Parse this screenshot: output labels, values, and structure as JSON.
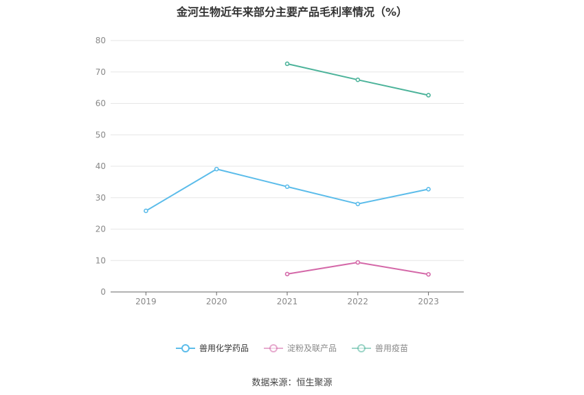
{
  "chart_data": {
    "type": "line",
    "title": "金河生物近年来部分主要产品毛利率情况（%）",
    "x": [
      "2019",
      "2020",
      "2021",
      "2022",
      "2023"
    ],
    "ylim": [
      0,
      80
    ],
    "yticks": [
      0,
      10,
      20,
      30,
      40,
      50,
      60,
      70,
      80
    ],
    "grid": true,
    "legend_position": "bottom",
    "series": [
      {
        "name": "兽用化学药品",
        "color": "#5bbcea",
        "values": [
          25.8,
          39.1,
          33.5,
          28.0,
          32.7
        ]
      },
      {
        "name": "淀粉及联产品",
        "color": "#d468a8",
        "values": [
          null,
          null,
          5.7,
          9.4,
          5.6
        ]
      },
      {
        "name": "兽用疫苗",
        "color": "#4cb39a",
        "values": [
          null,
          null,
          72.6,
          67.5,
          62.6
        ]
      }
    ]
  },
  "source": "数据来源：恒生聚源"
}
